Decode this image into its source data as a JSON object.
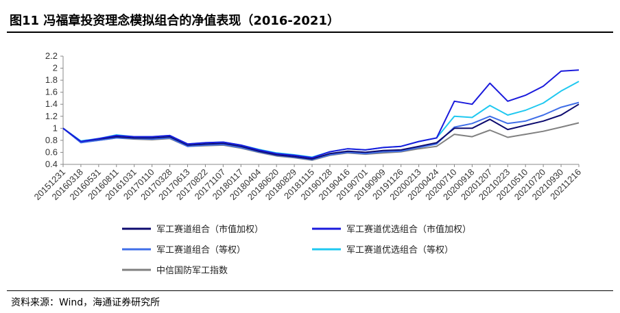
{
  "header": {
    "title": "图11 冯福章投资理念模拟组合的净值表现（2016-2021）"
  },
  "footer": {
    "source": "资料来源：Wind，海通证券研究所"
  },
  "colors": {
    "axis": "#888888",
    "text": "#333333"
  },
  "chart_data": {
    "type": "line",
    "title": "",
    "xlabel": "",
    "ylabel": "",
    "ylim": [
      0.4,
      2.2
    ],
    "yticks": [
      "0.4",
      "0.6",
      "0.8",
      "1",
      "1.2",
      "1.4",
      "1.6",
      "1.8",
      "2",
      "2.2"
    ],
    "grid": false,
    "legend_position": "bottom",
    "x": [
      "20151231",
      "20160318",
      "20160531",
      "20160811",
      "20161031",
      "20170110",
      "20170328",
      "20170613",
      "20170822",
      "20171107",
      "20180117",
      "20180404",
      "20180620",
      "20180829",
      "20181115",
      "20190128",
      "20190416",
      "20190701",
      "20190909",
      "20191126",
      "20200213",
      "20200424",
      "20200710",
      "20200918",
      "20201207",
      "20210223",
      "20210510",
      "20210720",
      "20210930",
      "20211216"
    ],
    "series": [
      {
        "name": "军工赛道组合（市值加权）",
        "color": "#0c0a6e",
        "values": [
          1.0,
          0.78,
          0.82,
          0.86,
          0.84,
          0.84,
          0.86,
          0.72,
          0.74,
          0.75,
          0.7,
          0.62,
          0.56,
          0.53,
          0.49,
          0.58,
          0.62,
          0.6,
          0.63,
          0.64,
          0.7,
          0.76,
          1.0,
          1.0,
          1.15,
          0.98,
          1.05,
          1.12,
          1.22,
          1.4
        ]
      },
      {
        "name": "军工赛道优选组合（市值加权）",
        "color": "#1a1adc",
        "values": [
          1.0,
          0.78,
          0.83,
          0.88,
          0.86,
          0.86,
          0.88,
          0.74,
          0.76,
          0.77,
          0.72,
          0.64,
          0.58,
          0.55,
          0.51,
          0.61,
          0.66,
          0.64,
          0.68,
          0.7,
          0.78,
          0.84,
          1.45,
          1.4,
          1.75,
          1.45,
          1.55,
          1.7,
          1.95,
          1.97
        ]
      },
      {
        "name": "军工赛道组合（等权）",
        "color": "#3f6ee8",
        "values": [
          1.0,
          0.76,
          0.8,
          0.84,
          0.83,
          0.82,
          0.84,
          0.7,
          0.72,
          0.73,
          0.68,
          0.61,
          0.55,
          0.52,
          0.48,
          0.56,
          0.6,
          0.58,
          0.61,
          0.62,
          0.68,
          0.74,
          1.02,
          1.08,
          1.2,
          1.08,
          1.12,
          1.22,
          1.35,
          1.43
        ]
      },
      {
        "name": "军工赛道优选组合（等权）",
        "color": "#1fc8f0",
        "values": [
          1.0,
          0.79,
          0.83,
          0.89,
          0.86,
          0.86,
          0.88,
          0.74,
          0.76,
          0.77,
          0.72,
          0.65,
          0.59,
          0.56,
          0.52,
          0.61,
          0.66,
          0.64,
          0.68,
          0.7,
          0.78,
          0.84,
          1.2,
          1.18,
          1.38,
          1.22,
          1.3,
          1.42,
          1.62,
          1.78
        ]
      },
      {
        "name": "中信国防军工指数",
        "color": "#808080",
        "values": [
          1.0,
          0.77,
          0.8,
          0.84,
          0.82,
          0.81,
          0.83,
          0.7,
          0.71,
          0.72,
          0.67,
          0.6,
          0.54,
          0.51,
          0.47,
          0.55,
          0.59,
          0.57,
          0.59,
          0.61,
          0.66,
          0.7,
          0.9,
          0.86,
          0.97,
          0.85,
          0.9,
          0.95,
          1.02,
          1.09
        ]
      }
    ]
  }
}
